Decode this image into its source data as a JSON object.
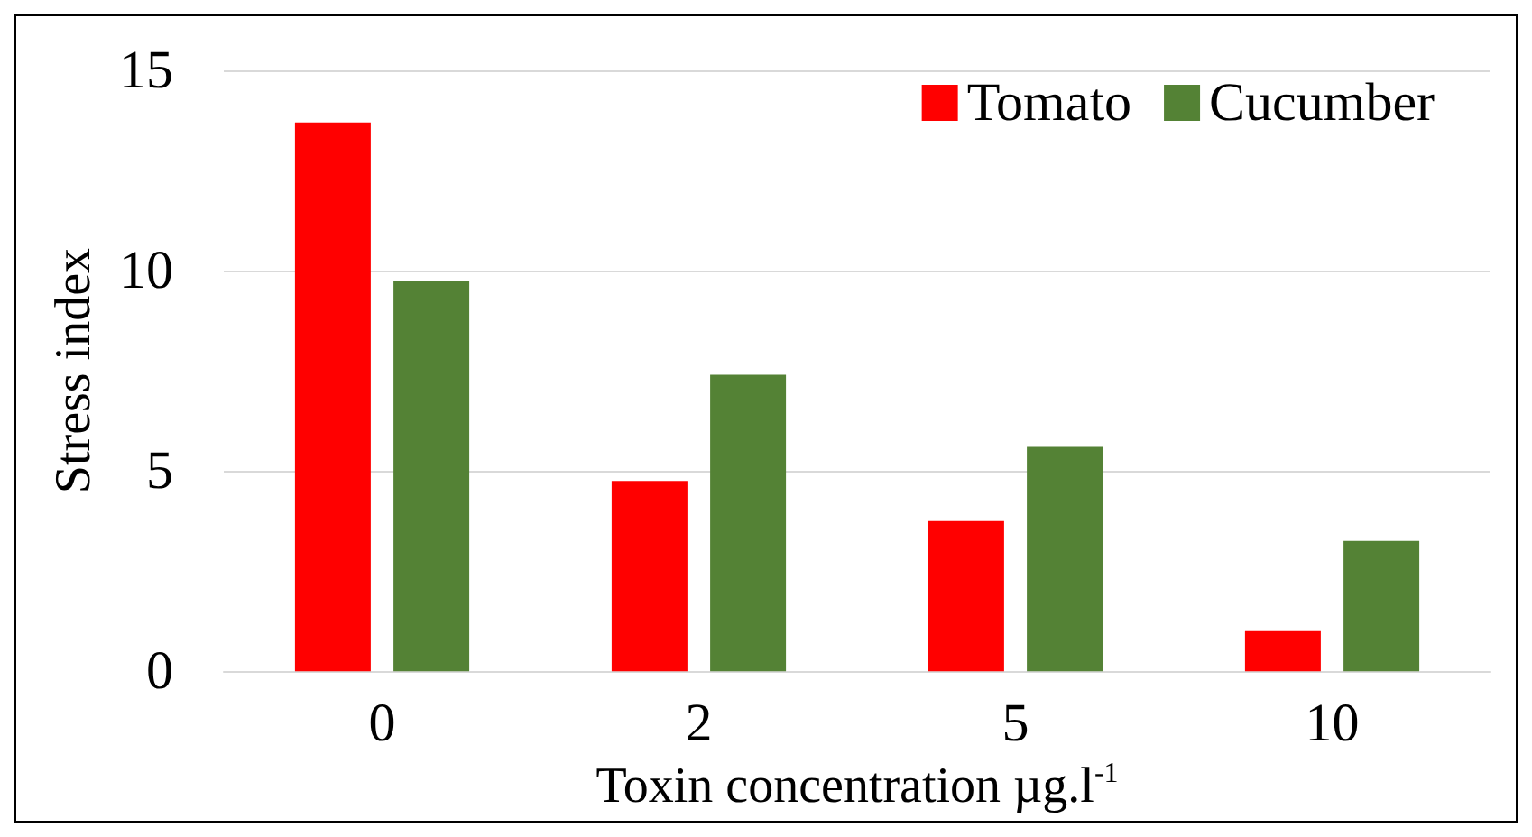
{
  "chart_data": {
    "type": "bar",
    "xlabel": "Toxin concentration µg.l$^{-1}$",
    "ylabel": "Stress index",
    "categories": [
      "0",
      "2",
      "5",
      "10"
    ],
    "series": [
      {
        "name": "Tomato",
        "color": "#ff0000",
        "values": [
          13.7,
          4.75,
          3.75,
          1.0
        ]
      },
      {
        "name": "Cucumber",
        "color": "#548235",
        "values": [
          9.75,
          7.4,
          5.6,
          3.25
        ]
      }
    ],
    "ylim": [
      0,
      15
    ],
    "yticks": [
      0,
      5,
      10,
      15
    ],
    "grid": "y",
    "legend": "top right"
  }
}
